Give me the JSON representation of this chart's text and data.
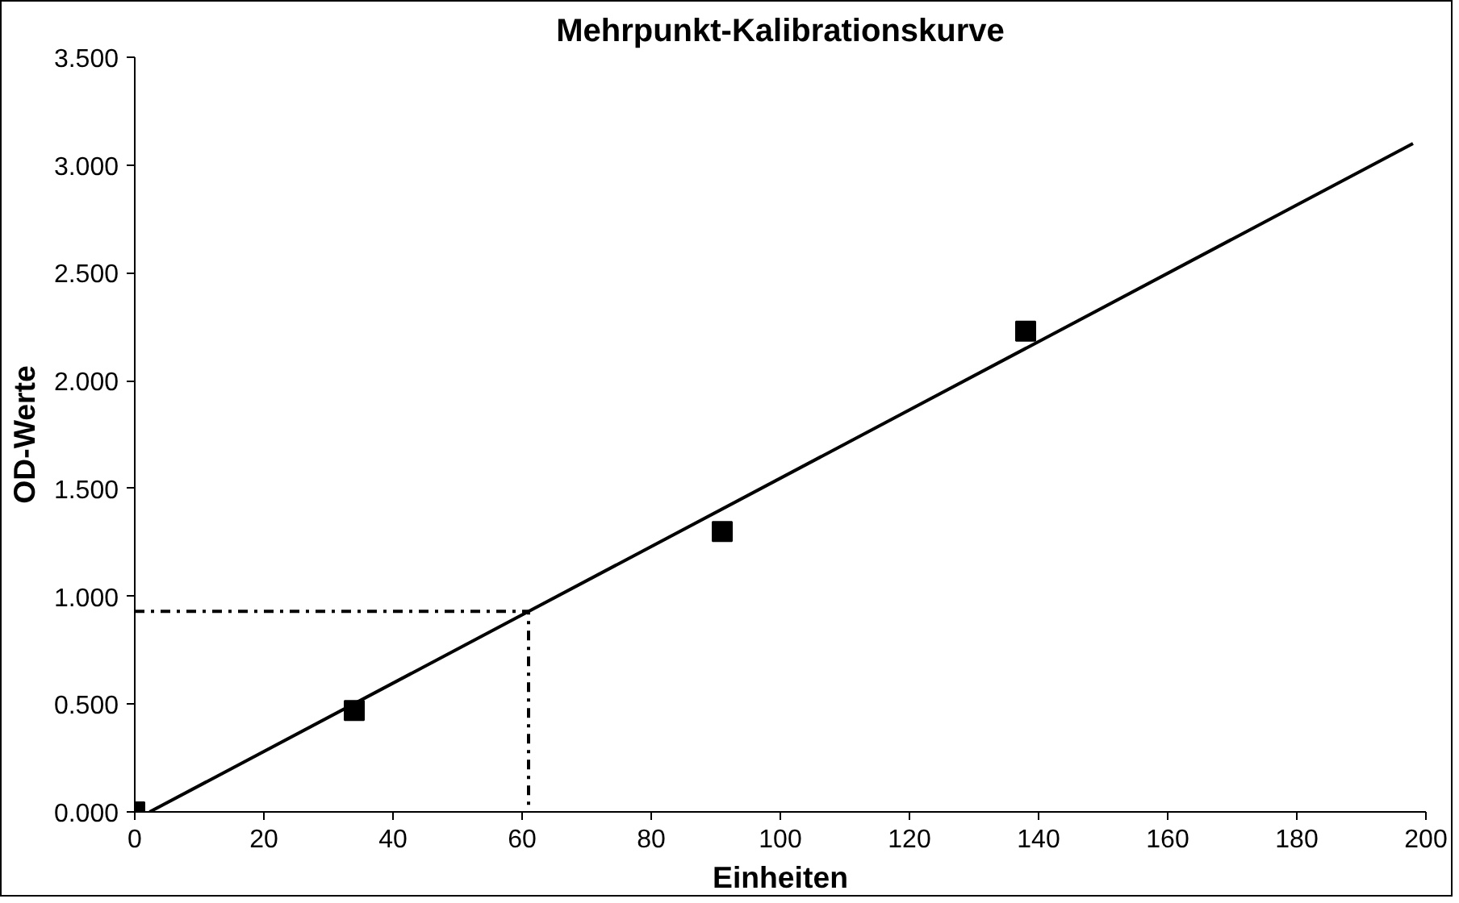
{
  "chart_data": {
    "type": "scatter",
    "title": "Mehrpunkt-Kalibrationskurve",
    "xlabel": "Einheiten",
    "ylabel": "OD-Werte",
    "series": [
      {
        "color": "#000000",
        "marker": "square",
        "x": [
          0,
          34,
          91,
          138
        ],
        "values": [
          0.0,
          0.47,
          1.3,
          2.23
        ]
      },
      {
        "type": "line",
        "color": "#000000",
        "marker": "none",
        "line_style": "solid",
        "x": [
          2.3,
          198
        ],
        "values": [
          0.0,
          3.1
        ]
      },
      {
        "type": "line",
        "color": "#000000",
        "marker": "none",
        "line_style": "dashdot",
        "x": [
          0,
          61,
          61
        ],
        "values": [
          0.93,
          0.93,
          0.0
        ]
      }
    ],
    "xlim": [
      0,
      200
    ],
    "xticks": [
      0,
      20,
      40,
      60,
      80,
      100,
      120,
      140,
      160,
      180,
      200
    ],
    "ylim": [
      0,
      3.5
    ],
    "yticks": [
      {
        "value": 0,
        "label": "0.000"
      },
      {
        "value": 0.5,
        "label": "0.500"
      },
      {
        "value": 1,
        "label": "1.000"
      },
      {
        "value": 1.5,
        "label": "1.500"
      },
      {
        "value": 2,
        "label": "2.000"
      },
      {
        "value": 2.5,
        "label": "2.500"
      },
      {
        "value": 3,
        "label": "3.000"
      },
      {
        "value": 3.5,
        "label": "3.500"
      }
    ],
    "grid": false
  }
}
